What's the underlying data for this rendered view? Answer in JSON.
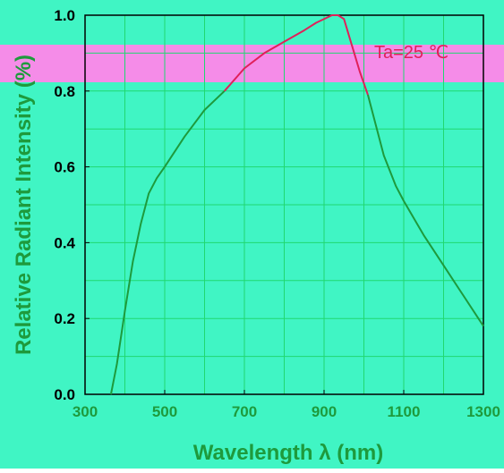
{
  "chart_data": {
    "type": "line",
    "title": "",
    "xlabel": "Wavelength λ (nm)",
    "ylabel": "Relative Radiant Intensity (%)",
    "xlim": [
      300,
      1300
    ],
    "ylim": [
      0.0,
      1.0
    ],
    "x_ticks": [
      "300",
      "500",
      "700",
      "900",
      "1100",
      "1300"
    ],
    "y_ticks": [
      "0.0",
      "0.2",
      "0.4",
      "0.6",
      "0.8",
      "1.0"
    ],
    "grid": true,
    "annotations": [
      "Ta=25 ℃"
    ],
    "series": [
      {
        "name": "",
        "x": [
          365,
          380,
          400,
          420,
          440,
          460,
          480,
          500,
          550,
          600,
          650,
          700,
          750,
          800,
          850,
          880,
          900,
          920,
          935,
          950,
          970,
          990,
          1010,
          1030,
          1050,
          1080,
          1100,
          1150,
          1200,
          1250,
          1300
        ],
        "y": [
          0.0,
          0.08,
          0.22,
          0.35,
          0.45,
          0.53,
          0.57,
          0.6,
          0.68,
          0.75,
          0.8,
          0.86,
          0.9,
          0.93,
          0.96,
          0.98,
          0.99,
          1.0,
          1.0,
          0.99,
          0.92,
          0.85,
          0.79,
          0.71,
          0.63,
          0.55,
          0.51,
          0.42,
          0.34,
          0.26,
          0.18
        ]
      }
    ]
  },
  "colors": {
    "background": "#40F5C4",
    "band": "#F58CE8",
    "grid": "#20D870",
    "frame": "#000000",
    "curve": "#1E9A3C",
    "curve_peak": "#E0205A",
    "axis_text": "#1E9A3C",
    "tick_text": "#000000",
    "annotation_text": "#E0205A"
  }
}
